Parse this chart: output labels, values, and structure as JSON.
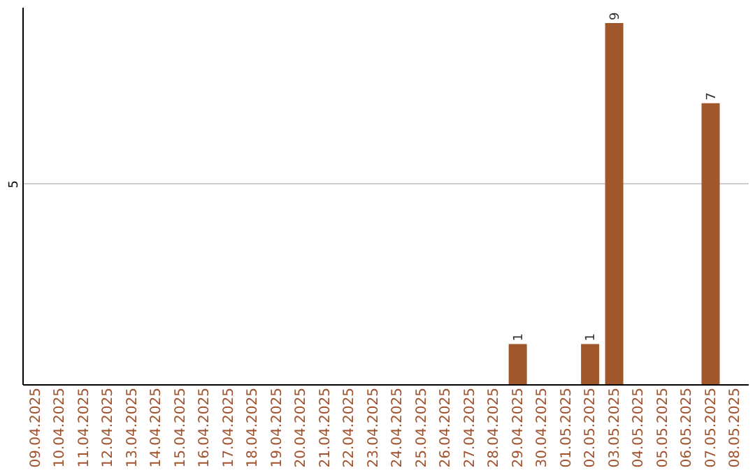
{
  "chart_data": {
    "type": "bar",
    "ylim": [
      0,
      9.4
    ],
    "yticks": [
      5
    ],
    "grid": "y",
    "data_labels": true,
    "color": "#a0572b",
    "categories": [
      "09.04.2025",
      "10.04.2025",
      "11.04.2025",
      "12.04.2025",
      "13.04.2025",
      "14.04.2025",
      "15.04.2025",
      "16.04.2025",
      "17.04.2025",
      "18.04.2025",
      "19.04.2025",
      "20.04.2025",
      "21.04.2025",
      "22.04.2025",
      "23.04.2025",
      "24.04.2025",
      "25.04.2025",
      "26.04.2025",
      "27.04.2025",
      "28.04.2025",
      "29.04.2025",
      "30.04.2025",
      "01.05.2025",
      "02.05.2025",
      "03.05.2025",
      "04.05.2025",
      "05.05.2025",
      "06.05.2025",
      "07.05.2025",
      "08.05.2025"
    ],
    "values": [
      null,
      null,
      null,
      null,
      null,
      null,
      null,
      null,
      null,
      null,
      null,
      null,
      null,
      null,
      null,
      null,
      null,
      null,
      null,
      null,
      1,
      null,
      null,
      1,
      9,
      null,
      null,
      null,
      7,
      null
    ]
  }
}
